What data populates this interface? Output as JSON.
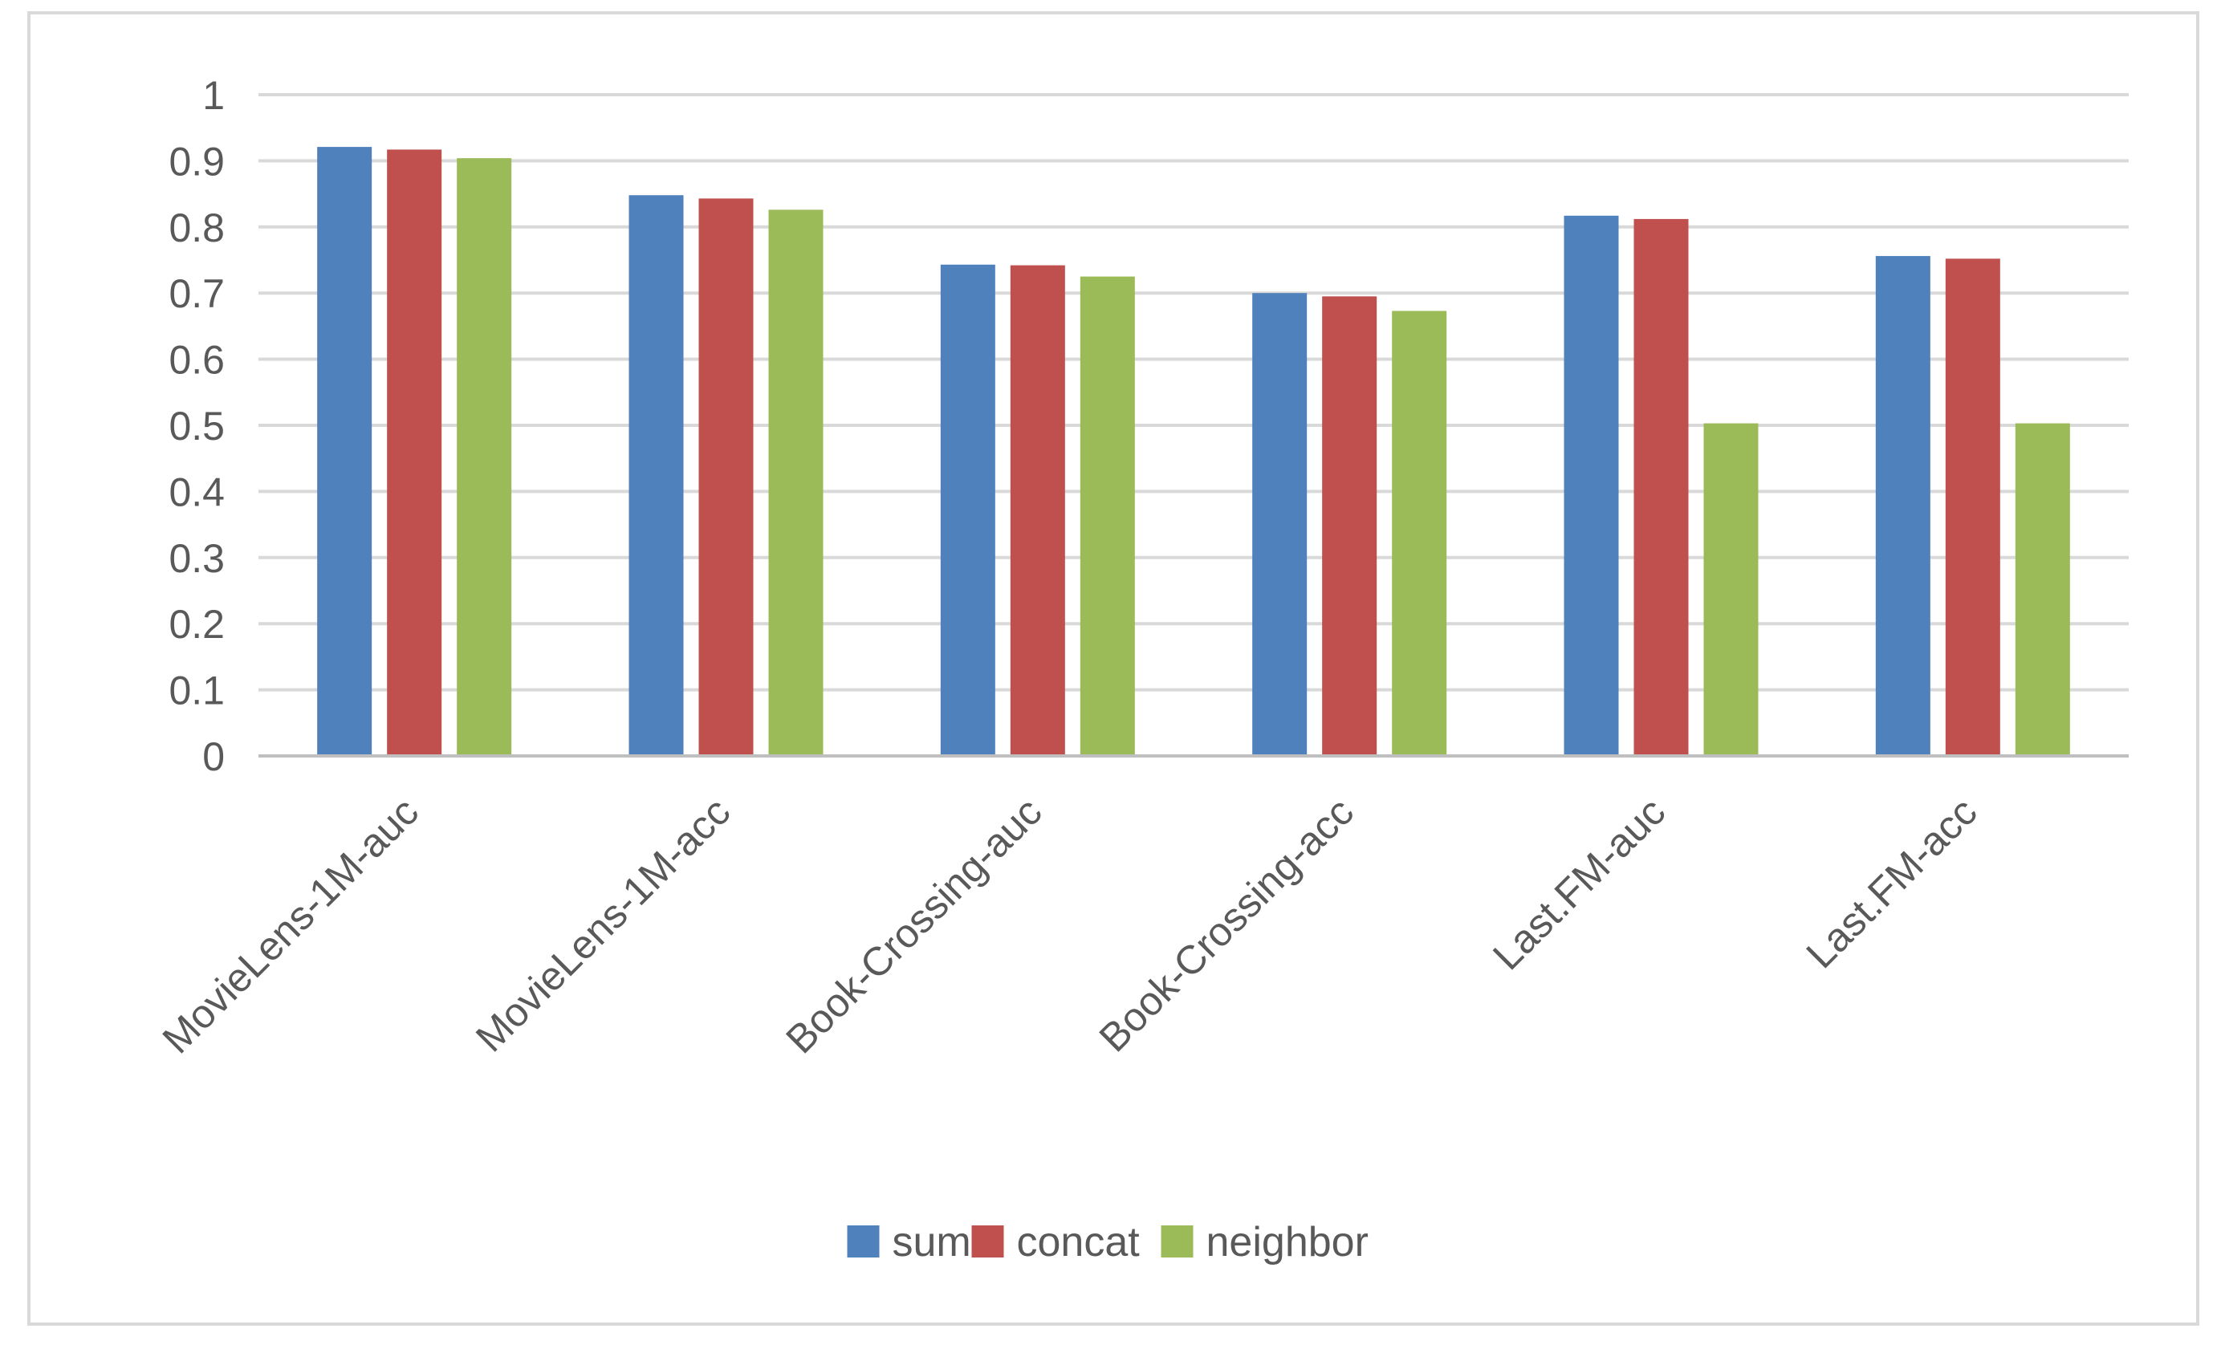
{
  "chart_data": {
    "type": "bar",
    "title": "",
    "xlabel": "",
    "ylabel": "",
    "categories": [
      "MovieLens-1M-auc",
      "MovieLens-1M-acc",
      "Book-Crossing-auc",
      "Book-Crossing-acc",
      "Last.FM-auc",
      "Last.FM-acc"
    ],
    "series": [
      {
        "name": "sum",
        "color": "#4f81bd",
        "values": [
          0.921,
          0.848,
          0.743,
          0.7,
          0.817,
          0.756
        ]
      },
      {
        "name": "concat",
        "color": "#c0504d",
        "values": [
          0.917,
          0.843,
          0.742,
          0.695,
          0.812,
          0.752
        ]
      },
      {
        "name": "neighbor",
        "color": "#9bbb59",
        "values": [
          0.904,
          0.826,
          0.725,
          0.673,
          0.503,
          0.503
        ]
      }
    ],
    "ylim": [
      0,
      1
    ],
    "yticks": [
      "0",
      "0.1",
      "0.2",
      "0.3",
      "0.4",
      "0.5",
      "0.6",
      "0.7",
      "0.8",
      "0.9",
      "1"
    ],
    "grid": true,
    "gridline_color": "#d9d9d9",
    "legend_position": "bottom"
  }
}
